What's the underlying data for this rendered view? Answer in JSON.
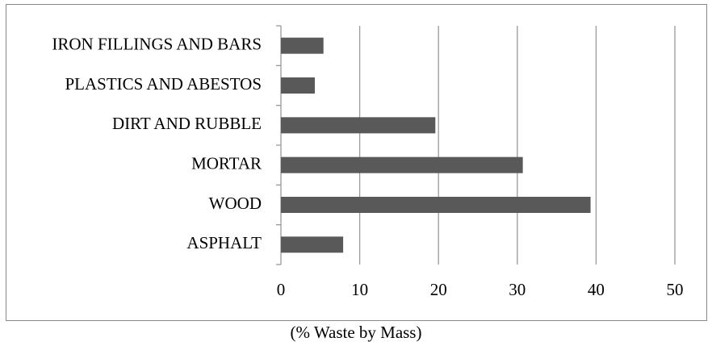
{
  "chart_data": {
    "type": "barh",
    "categories": [
      "ASPHALT",
      "WOOD",
      "MORTAR",
      "DIRT AND RUBBLE",
      "PLASTICS AND ABESTOS",
      "IRON FILLINGS AND BARS"
    ],
    "values": [
      7.9,
      39.3,
      30.7,
      19.6,
      4.3,
      5.4
    ],
    "color": "#595959",
    "xlabel": "(% Waste by Mass)",
    "xlim": [
      0,
      50
    ],
    "xticks": [
      0,
      10,
      20,
      30,
      40,
      50
    ],
    "grid": true
  }
}
